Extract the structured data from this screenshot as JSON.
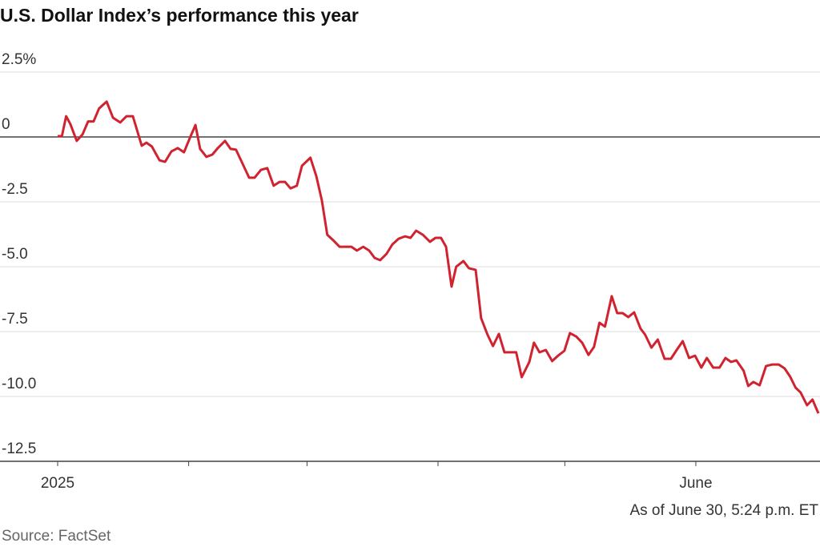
{
  "chart_data": {
    "type": "line",
    "title": "U.S. Dollar Index’s performance this year",
    "note": "As of June 30, 5:24 p.m. ET",
    "source": "Source: FactSet",
    "series": [
      {
        "color": "#d0232f",
        "x": [
          0,
          1,
          2,
          3.0,
          4.5,
          5.9,
          7.2,
          8.5,
          9.8,
          11.6,
          13.1,
          14.8,
          16.3,
          17.8,
          19.9,
          21.0,
          22.3,
          24.1,
          25.4,
          26.9,
          28.4,
          29.9,
          31.3,
          32.6,
          33.7,
          35.2,
          36.6,
          37.9,
          39.6,
          40.9,
          42.2,
          43.8,
          45.3,
          46.6,
          48.1,
          49.6,
          51.1,
          52.5,
          53.8,
          55.1,
          56.6,
          57.8,
          59.8,
          61.2,
          62.5,
          63.8,
          65.2,
          66.7,
          68.2,
          69.5,
          70.8,
          72.3,
          73.7,
          75.0,
          76.3,
          77.8,
          79.2,
          80.7,
          82.2,
          83.5,
          84.8,
          86.4,
          88.1,
          89.4,
          90.7,
          91.9,
          93.2,
          94.3,
          96.0,
          97.3,
          98.9,
          100.2,
          101.7,
          103.0,
          104.4,
          105.7,
          107.0,
          108.5,
          109.8,
          111.6,
          112.7,
          114.0,
          115.5,
          117.0,
          118.4,
          119.9,
          121.2,
          122.7,
          124.1,
          125.6,
          126.9,
          128.2,
          129.5,
          131.1,
          132.4,
          133.7,
          135.0,
          136.4,
          137.9,
          139.0,
          140.5,
          142.0,
          143.6,
          145.1,
          146.6,
          147.9,
          149.4,
          150.8,
          152.3,
          153.6,
          155.1,
          156.6,
          158.0,
          159.3,
          160.6,
          162.3,
          163.4,
          164.6,
          166.1,
          167.6,
          169.1,
          170.6,
          172.0,
          173.3,
          174.6,
          175.8,
          177.3,
          178.6,
          180.0
        ],
        "values": [
          0.03,
          0.03,
          0.8,
          0.5,
          -0.15,
          0.1,
          0.6,
          0.6,
          1.1,
          1.36,
          0.74,
          0.56,
          0.8,
          0.8,
          -0.34,
          -0.22,
          -0.37,
          -0.9,
          -0.96,
          -0.56,
          -0.43,
          -0.59,
          -0.03,
          0.46,
          -0.46,
          -0.77,
          -0.68,
          -0.43,
          -0.15,
          -0.46,
          -0.49,
          -1.05,
          -1.57,
          -1.57,
          -1.27,
          -1.2,
          -1.88,
          -1.73,
          -1.73,
          -1.98,
          -1.88,
          -1.11,
          -0.8,
          -1.51,
          -2.44,
          -3.77,
          -3.98,
          -4.23,
          -4.23,
          -4.23,
          -4.38,
          -4.23,
          -4.38,
          -4.66,
          -4.75,
          -4.51,
          -4.14,
          -3.92,
          -3.83,
          -3.89,
          -3.61,
          -3.77,
          -4.04,
          -3.89,
          -3.89,
          -4.23,
          -5.77,
          -5.0,
          -4.78,
          -5.06,
          -5.12,
          -6.98,
          -7.62,
          -8.06,
          -7.59,
          -8.3,
          -8.3,
          -8.3,
          -9.26,
          -8.67,
          -7.93,
          -8.3,
          -8.21,
          -8.64,
          -8.43,
          -8.24,
          -7.56,
          -7.69,
          -7.93,
          -8.4,
          -8.09,
          -7.16,
          -7.31,
          -6.14,
          -6.79,
          -6.79,
          -6.94,
          -6.76,
          -7.38,
          -7.62,
          -8.12,
          -7.81,
          -8.55,
          -8.55,
          -8.18,
          -7.87,
          -8.52,
          -8.43,
          -8.89,
          -8.52,
          -8.89,
          -8.89,
          -8.52,
          -8.67,
          -8.61,
          -9.01,
          -9.6,
          -9.44,
          -9.57,
          -8.83,
          -8.77,
          -8.77,
          -8.92,
          -9.23,
          -9.66,
          -9.85,
          -10.34,
          -10.12,
          -10.65
        ]
      }
    ],
    "xlim": [
      0,
      180
    ],
    "xticks": [
      {
        "value": 0,
        "label": "2025"
      },
      {
        "value": 151,
        "label": "June"
      }
    ],
    "minor_xticks": [
      31,
      59,
      90,
      120
    ],
    "ylim": [
      -12.5,
      2.5
    ],
    "yticks": [
      {
        "value": 2.5,
        "label": "2.5%"
      },
      0,
      {
        "value": -2.5,
        "label": "-2.5"
      },
      {
        "value": -5,
        "label": "-5.0"
      },
      {
        "value": -7.5,
        "label": "-7.5"
      },
      {
        "value": -10,
        "label": "-10.0"
      },
      {
        "value": -12.5,
        "label": "-12.5"
      }
    ],
    "grid": true
  }
}
